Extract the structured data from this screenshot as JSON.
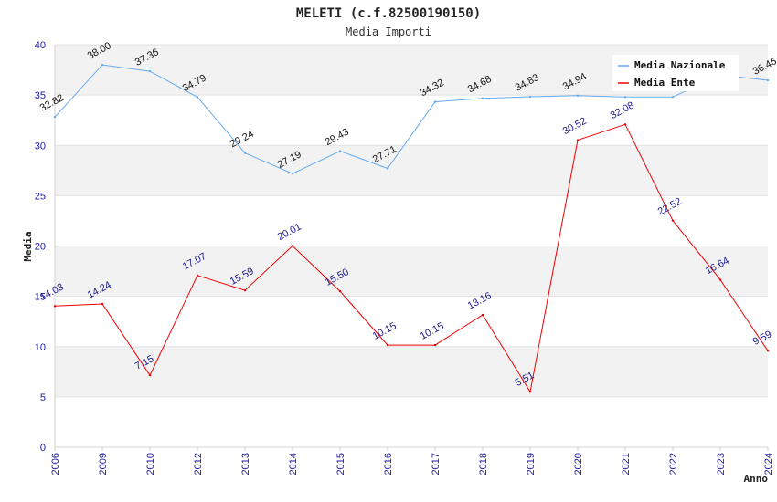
{
  "chart_data": {
    "type": "line",
    "title": "MELETI (c.f.82500190150)",
    "subtitle": "Media Importi",
    "xlabel": "Anno",
    "ylabel": "Media",
    "ylim": [
      0,
      40
    ],
    "yticks": [
      "0",
      "5",
      "10",
      "15",
      "20",
      "25",
      "30",
      "35",
      "40"
    ],
    "categories": [
      "2006",
      "2009",
      "2010",
      "2012",
      "2013",
      "2014",
      "2015",
      "2016",
      "2017",
      "2018",
      "2019",
      "2020",
      "2021",
      "2022",
      "2023",
      "2024"
    ],
    "series": [
      {
        "name": "Media Nazionale",
        "color": "#66aaee",
        "values": [
          32.82,
          38.0,
          37.36,
          34.79,
          29.24,
          27.19,
          29.43,
          27.71,
          34.32,
          34.68,
          34.83,
          34.94,
          34.8,
          34.8,
          37.0,
          36.46
        ],
        "labels": [
          "32.82",
          "38.00",
          "37.36",
          "34.79",
          "29.24",
          "27.19",
          "29.43",
          "27.71",
          "34.32",
          "34.68",
          "34.83",
          "34.94",
          "",
          "",
          "",
          "36.46"
        ]
      },
      {
        "name": "Media Ente",
        "color": "#ee0000",
        "values": [
          14.03,
          14.24,
          7.15,
          17.07,
          15.59,
          20.01,
          15.5,
          10.15,
          10.15,
          13.16,
          5.51,
          30.52,
          32.08,
          22.52,
          16.64,
          9.59
        ],
        "labels": [
          "14.03",
          "14.24",
          "7.15",
          "17.07",
          "15.59",
          "20.01",
          "15.50",
          "10.15",
          "10.15",
          "13.16",
          "5.51",
          "30.52",
          "32.08",
          "22.52",
          "16.64",
          "9.59"
        ]
      }
    ],
    "grid": true,
    "legend": "top-right"
  }
}
